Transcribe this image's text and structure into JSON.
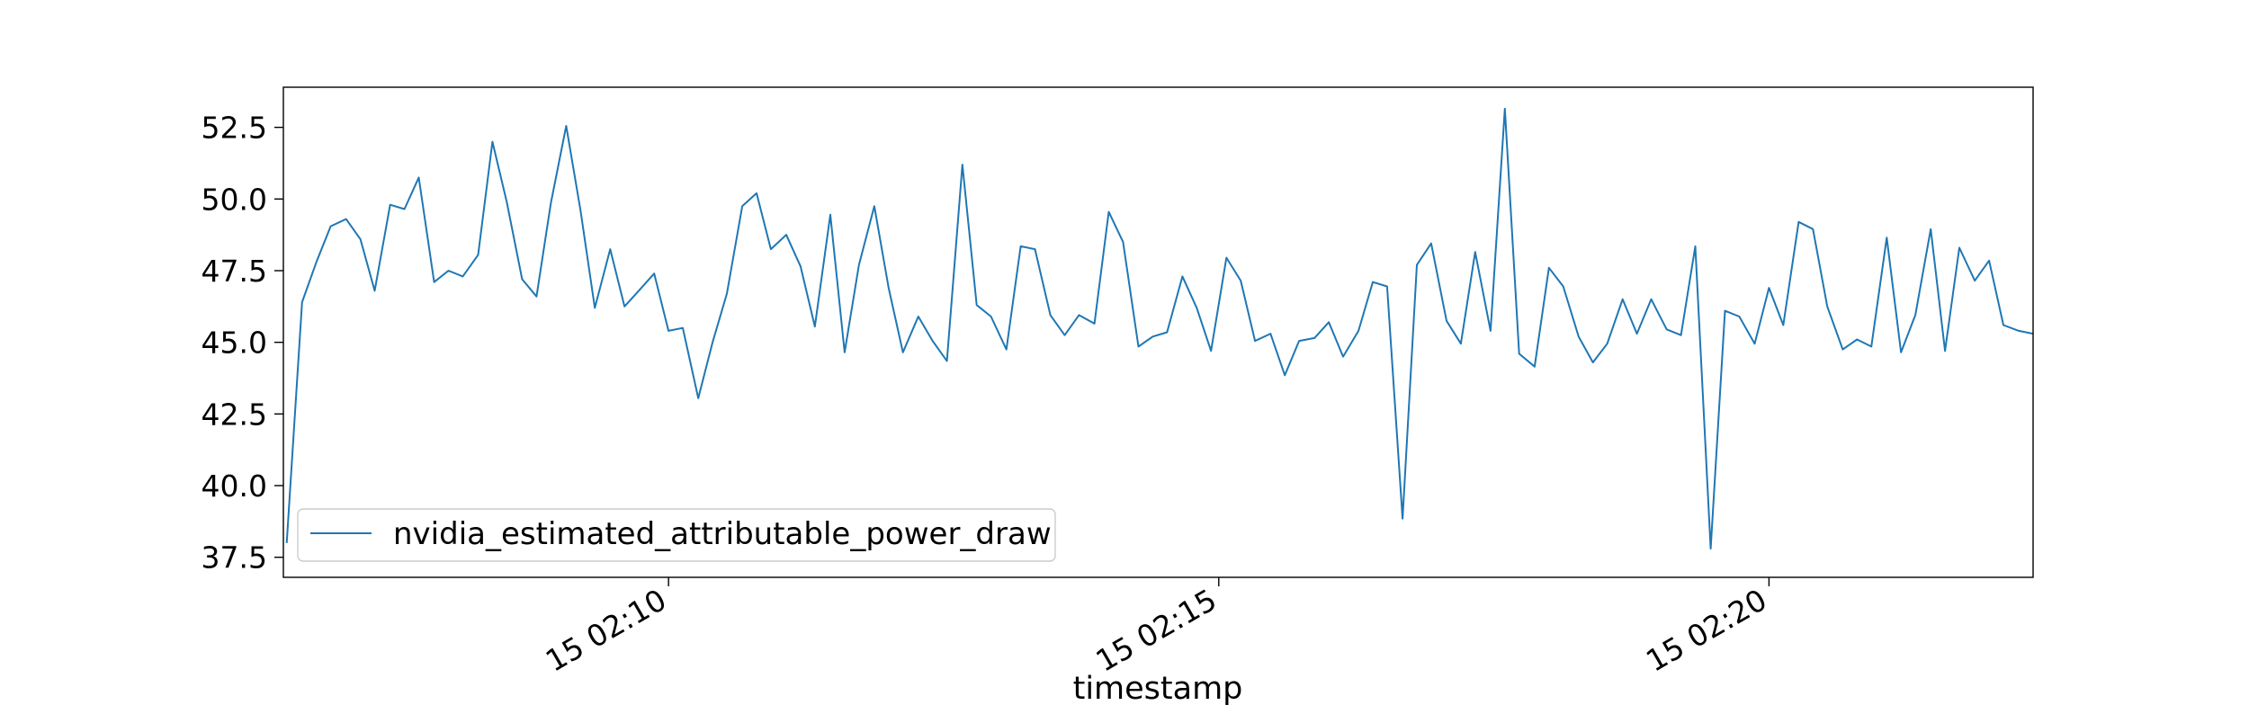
{
  "chart_data": {
    "type": "line",
    "title": "",
    "xlabel": "timestamp",
    "ylabel": "",
    "x_range_minutes": [
      6.5,
      22.4
    ],
    "ylim": [
      36.8,
      53.9
    ],
    "x_ticks": [
      {
        "minute": 10,
        "label": "15 02:10"
      },
      {
        "minute": 15,
        "label": "15 02:15"
      },
      {
        "minute": 20,
        "label": "15 02:20"
      }
    ],
    "y_ticks": [
      {
        "value": 37.5,
        "label": "37.5"
      },
      {
        "value": 40.0,
        "label": "40.0"
      },
      {
        "value": 42.5,
        "label": "42.5"
      },
      {
        "value": 45.0,
        "label": "45.0"
      },
      {
        "value": 47.5,
        "label": "47.5"
      },
      {
        "value": 50.0,
        "label": "50.0"
      },
      {
        "value": 52.5,
        "label": "52.5"
      }
    ],
    "grid": false,
    "legend": {
      "position": "lower-left"
    },
    "series": [
      {
        "name": "nvidia_estimated_attributable_power_draw",
        "color": "#1f77b4",
        "x_minutes": [
          6.53,
          6.67,
          6.8,
          6.93,
          7.07,
          7.2,
          7.33,
          7.47,
          7.6,
          7.73,
          7.87,
          8.0,
          8.13,
          8.27,
          8.4,
          8.53,
          8.67,
          8.8,
          8.93,
          9.07,
          9.2,
          9.33,
          9.47,
          9.6,
          9.73,
          9.87,
          10.0,
          10.13,
          10.27,
          10.4,
          10.53,
          10.67,
          10.8,
          10.93,
          11.07,
          11.2,
          11.33,
          11.47,
          11.6,
          11.73,
          11.87,
          12.0,
          12.13,
          12.27,
          12.4,
          12.53,
          12.67,
          12.8,
          12.93,
          13.07,
          13.2,
          13.33,
          13.47,
          13.6,
          13.73,
          13.87,
          14.0,
          14.13,
          14.27,
          14.4,
          14.53,
          14.67,
          14.8,
          14.93,
          15.07,
          15.2,
          15.33,
          15.47,
          15.6,
          15.73,
          15.87,
          16.0,
          16.13,
          16.27,
          16.4,
          16.53,
          16.67,
          16.8,
          16.93,
          17.07,
          17.2,
          17.33,
          17.47,
          17.6,
          17.73,
          17.87,
          18.0,
          18.13,
          18.27,
          18.4,
          18.53,
          18.67,
          18.8,
          18.93,
          19.07,
          19.2,
          19.33,
          19.47,
          19.6,
          19.73,
          19.87,
          20.0,
          20.13,
          20.27,
          20.4,
          20.53,
          20.67,
          20.8,
          20.93,
          21.07,
          21.2,
          21.33,
          21.47,
          21.6,
          21.73,
          21.87,
          22.0,
          22.13,
          22.27,
          22.4
        ],
        "values": [
          38.0,
          46.4,
          47.8,
          49.05,
          49.3,
          48.6,
          46.8,
          49.8,
          49.65,
          50.75,
          47.1,
          47.5,
          47.3,
          48.05,
          52.0,
          49.9,
          47.2,
          46.6,
          49.85,
          52.55,
          49.6,
          46.2,
          48.25,
          46.25,
          46.8,
          47.4,
          45.4,
          45.5,
          43.05,
          45.0,
          46.7,
          49.75,
          50.2,
          48.25,
          48.75,
          47.65,
          45.55,
          49.45,
          44.65,
          47.7,
          49.75,
          46.9,
          44.65,
          45.9,
          45.05,
          44.35,
          51.2,
          46.3,
          45.9,
          44.75,
          48.35,
          48.25,
          45.95,
          45.25,
          45.95,
          45.65,
          49.55,
          48.5,
          44.85,
          45.2,
          45.35,
          47.3,
          46.2,
          44.7,
          47.95,
          47.15,
          45.05,
          45.3,
          43.85,
          45.05,
          45.15,
          45.7,
          44.5,
          45.4,
          47.1,
          46.95,
          38.85,
          47.7,
          48.45,
          45.75,
          44.95,
          48.15,
          45.4,
          53.15,
          44.6,
          44.15,
          47.6,
          46.95,
          45.2,
          44.3,
          44.95,
          46.5,
          45.3,
          46.5,
          45.45,
          45.25,
          48.35,
          37.8,
          46.1,
          45.9,
          44.95,
          46.9,
          45.6,
          49.2,
          48.95,
          46.25,
          44.75,
          45.1,
          44.85,
          48.65,
          44.65,
          45.95,
          48.95,
          44.7,
          48.3,
          47.15,
          47.85,
          45.6,
          45.4,
          45.3
        ]
      }
    ]
  }
}
